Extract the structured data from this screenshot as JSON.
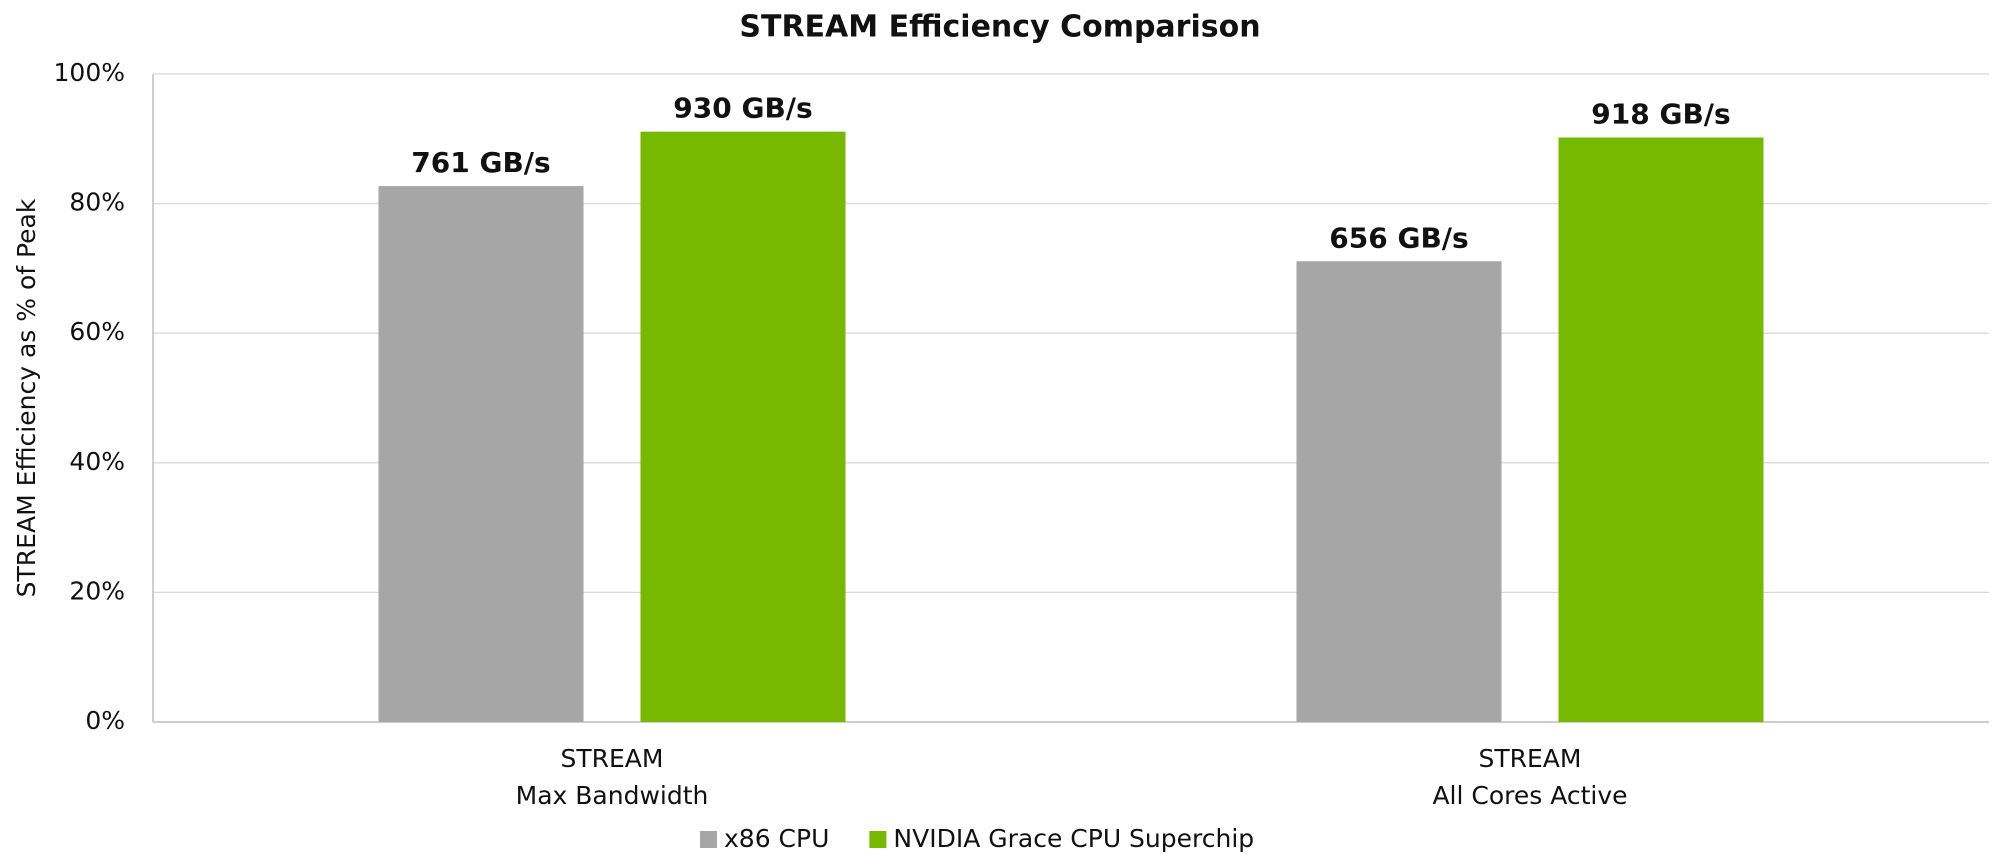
{
  "chart_data": {
    "type": "bar",
    "title": "STREAM Efficiency Comparison",
    "y_label": "STREAM Efficiency as % of Peak",
    "categories": [
      [
        "STREAM",
        "Max Bandwidth"
      ],
      [
        "STREAM",
        "All Cores Active"
      ]
    ],
    "series": [
      {
        "name": "x86 CPU",
        "color": "#a6a6a6",
        "values": [
          82.7,
          71.1
        ],
        "labels": [
          "761 GB/s",
          "656 GB/s"
        ]
      },
      {
        "name": "NVIDIA Grace CPU Superchip",
        "color": "#76b900",
        "values": [
          91.1,
          90.2
        ],
        "labels": [
          "930 GB/s",
          "918 GB/s"
        ]
      }
    ],
    "ylim": [
      0,
      100
    ],
    "yticks": [
      {
        "value": 0,
        "label": "0%"
      },
      {
        "value": 20,
        "label": "20%"
      },
      {
        "value": 40,
        "label": "40%"
      },
      {
        "value": 60,
        "label": "60%"
      },
      {
        "value": 80,
        "label": "80%"
      },
      {
        "value": 100,
        "label": "100%"
      }
    ],
    "grid": true,
    "legend": "bottom"
  }
}
